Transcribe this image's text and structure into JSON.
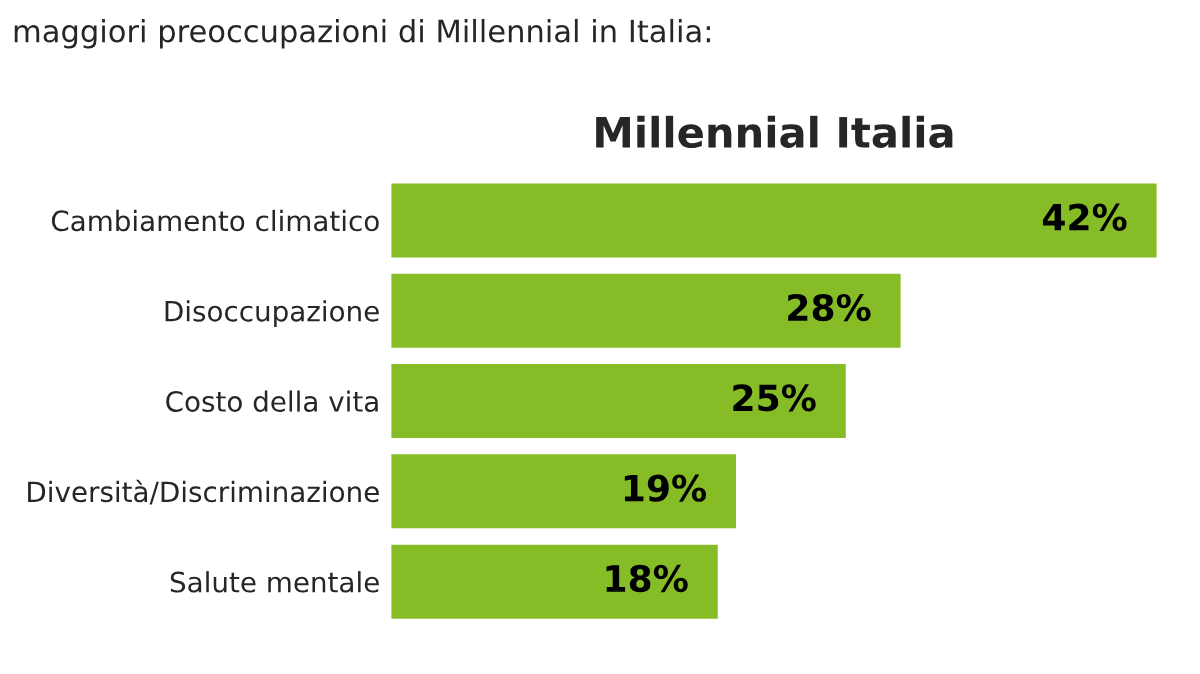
{
  "chart_data": {
    "type": "bar",
    "orientation": "horizontal",
    "title": "Millennial Italia",
    "annotations": [
      "maggiori preoccupazioni di Millennial in Italia:"
    ],
    "categories": [
      "Cambiamento climatico",
      "Disoccupazione",
      "Costo della vita",
      "Diversità/Discriminazione",
      "Salute mentale"
    ],
    "values": [
      42,
      28,
      25,
      19,
      18
    ],
    "value_labels": [
      "42%",
      "28%",
      "25%",
      "19%",
      "18%"
    ],
    "color": "#86bc25",
    "grid": false,
    "legend": false
  }
}
